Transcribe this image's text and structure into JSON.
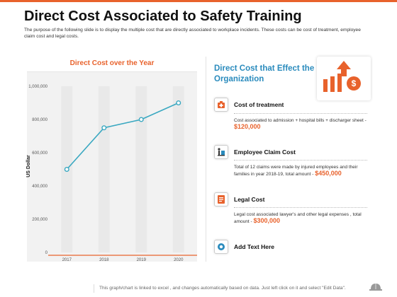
{
  "slide": {
    "title": "Direct Cost Associated to Safety Training",
    "subtitle": "The purpose of the following slide is to display the multiple cost that are directly associated to workplace incidents. These costs can be cost of treatment, employee claim cost and legal costs.",
    "footer": "This graph/chart is linked to excel , and changes automatically based on data. Just left click on it and select \"Edit Data\"."
  },
  "chart_panel": {
    "header": "Direct Cost over the Year"
  },
  "chart_data": {
    "type": "line",
    "x": [
      "2017",
      "2018",
      "2019",
      "2020"
    ],
    "values": [
      500000,
      750000,
      800000,
      900000
    ],
    "ylabel": "US Dollar",
    "ylim": [
      0,
      1000000
    ],
    "yticks": [
      0,
      200000,
      400000,
      600000,
      800000,
      1000000
    ],
    "ytick_labels": [
      "0",
      "200,000",
      "400,000",
      "600,000",
      "800,000",
      "1,000,000"
    ],
    "grid": false,
    "color": "#3aa8c1"
  },
  "right_panel": {
    "title": "Direct Cost that Effect the Organization",
    "items": [
      {
        "title": "Cost of treatment",
        "desc": "Cost associated to admission + hospital bills + discharger sheet -",
        "amount": "$120,000",
        "icon": "medical-kit-icon"
      },
      {
        "title": "Employee Claim Cost",
        "desc": "Total of 12 claims were made by injured employees and their families in year 2018-19, total amount -",
        "amount": "$450,000",
        "icon": "injured-person-icon"
      },
      {
        "title": "Legal Cost",
        "desc": "Legal cost associated lawyer's and other legal expenses , total amount -",
        "amount": "$300,000",
        "icon": "legal-document-icon"
      },
      {
        "title": "Add Text Here",
        "icon": "badge-icon"
      }
    ]
  },
  "colors": {
    "accent": "#e8622c",
    "title_blue": "#2a8bbd",
    "line": "#3aa8c1"
  }
}
